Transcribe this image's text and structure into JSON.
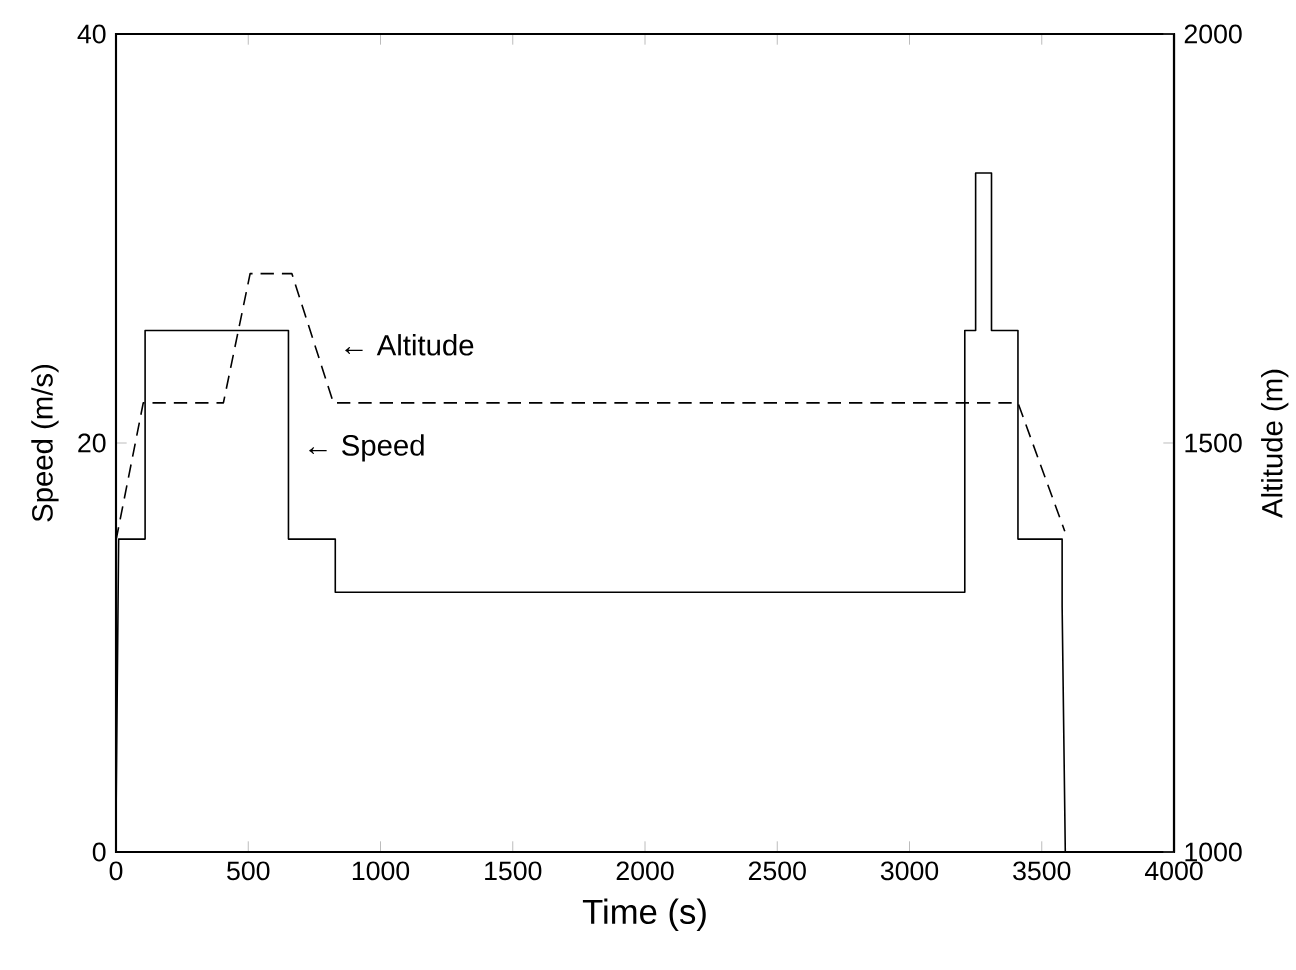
{
  "chart_data": {
    "type": "line",
    "xlabel": "Time (s)",
    "ylabel": "Speed (m/s)",
    "y2label": "Altitude (m)",
    "xlim": [
      0,
      4000
    ],
    "xticks": [
      0,
      500,
      1000,
      1500,
      2000,
      2500,
      3000,
      3500,
      4000
    ],
    "ylim": [
      0,
      40
    ],
    "yticks": [
      0,
      20,
      40
    ],
    "y2lim": [
      1000,
      2000
    ],
    "y2ticks": [
      1000,
      1500,
      2000
    ],
    "series": [
      {
        "color": "#000000",
        "line_style": "solid",
        "x": [
          0,
          10,
          10,
          110,
          110,
          652,
          652,
          829,
          829,
          3209,
          3209,
          3250,
          3250,
          3310,
          3310,
          3410,
          3410,
          3577,
          3577,
          3589
        ],
        "values": [
          1.5,
          15.3,
          15.3,
          15.3,
          25.5,
          25.5,
          15.3,
          15.3,
          12.7,
          12.7,
          25.5,
          25.5,
          33.2,
          33.2,
          25.5,
          25.5,
          15.3,
          15.3,
          12,
          0
        ]
      },
      {
        "axis": "y2",
        "color": "#000000",
        "line_style": "dashed",
        "x": [
          0,
          103,
          406,
          507,
          665,
          822,
          3410,
          3587
        ],
        "values": [
          1381,
          1549,
          1549,
          1707,
          1707,
          1549,
          1549,
          1392
        ]
      }
    ],
    "annotations": [
      "← Altitude",
      "← Speed"
    ]
  }
}
